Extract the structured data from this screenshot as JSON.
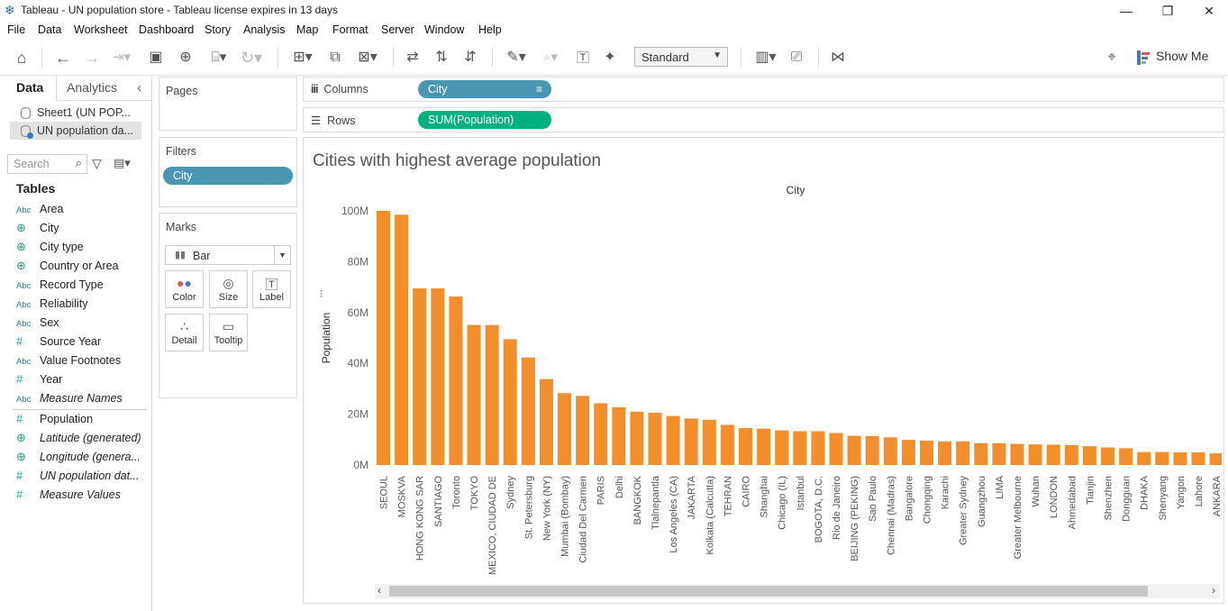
{
  "window": {
    "title": "Tableau - UN population store - Tableau license expires in 13 days",
    "controls": [
      "—",
      "❐",
      "✕"
    ]
  },
  "menu": [
    "File",
    "Data",
    "Worksheet",
    "Dashboard",
    "Story",
    "Analysis",
    "Map",
    "Format",
    "Server",
    "Window",
    "Help"
  ],
  "toolbar": {
    "fit_value": "Standard",
    "show_me_label": "Show Me"
  },
  "datapane": {
    "tabs": [
      "Data",
      "Analytics"
    ],
    "sources": [
      "Sheet1 (UN POP...",
      "UN population da..."
    ],
    "search_placeholder": "Search",
    "tables_heading": "Tables",
    "fields": [
      {
        "type": "Abc",
        "name": "Area",
        "italic": false
      },
      {
        "type": "globe",
        "name": "City",
        "italic": false
      },
      {
        "type": "globe",
        "name": "City type",
        "italic": false
      },
      {
        "type": "globe",
        "name": "Country or Area",
        "italic": false
      },
      {
        "type": "Abc",
        "name": "Record Type",
        "italic": false
      },
      {
        "type": "Abc",
        "name": "Reliability",
        "italic": false
      },
      {
        "type": "Abc",
        "name": "Sex",
        "italic": false
      },
      {
        "type": "#",
        "name": "Source Year",
        "italic": false
      },
      {
        "type": "Abc",
        "name": "Value Footnotes",
        "italic": false
      },
      {
        "type": "#",
        "name": "Year",
        "italic": false
      },
      {
        "type": "Abc",
        "name": "Measure Names",
        "italic": true
      }
    ],
    "measures": [
      {
        "type": "#",
        "name": "Population",
        "italic": false
      },
      {
        "type": "globe",
        "name": "Latitude (generated)",
        "italic": true
      },
      {
        "type": "globe",
        "name": "Longitude (genera...",
        "italic": true
      },
      {
        "type": "#",
        "name": "UN population dat...",
        "italic": true
      },
      {
        "type": "#",
        "name": "Measure Values",
        "italic": true
      }
    ]
  },
  "cards": {
    "pages_label": "Pages",
    "filters_label": "Filters",
    "filter_pill": "City",
    "marks_label": "Marks",
    "mark_type": "Bar",
    "mark_buttons": [
      "Color",
      "Size",
      "Label",
      "Detail",
      "Tooltip"
    ]
  },
  "shelves": {
    "columns_label": "Columns",
    "columns_pill": "City",
    "rows_label": "Rows",
    "rows_pill": "SUM(Population)"
  },
  "viz": {
    "title": "Cities with highest average population"
  },
  "colors": {
    "bar": "#f28e2b",
    "dimension_pill": "#4996b2",
    "measure_pill": "#00b180"
  },
  "chart_data": {
    "type": "bar",
    "title": "Cities with highest average population",
    "xlabel": "City",
    "ylabel": "Population",
    "ylim": [
      0,
      100000000
    ],
    "yticks": [
      "0M",
      "20M",
      "40M",
      "60M",
      "80M",
      "100M"
    ],
    "categories": [
      "SEOUL",
      "MOSKVA",
      "HONG KONG SAR",
      "SANTIAGO",
      "Toronto",
      "TOKYO",
      "MEXICO, CIUDAD DE",
      "Sydney",
      "St. Petersburg",
      "New York (NY)",
      "Mumbai (Bombay)",
      "Ciudad Del Carmen",
      "PARIS",
      "Delhi",
      "BANGKOK",
      "Tlalnepantla",
      "Los Angeles (CA)",
      "JAKARTA",
      "Kolkata (Calcutta)",
      "TEHRAN",
      "CAIRO",
      "Shanghai",
      "Chicago (IL)",
      "Istanbul",
      "BOGOTA, D.C.",
      "Rio de Janeiro",
      "BEIJING (PEKING)",
      "Sao Paulo",
      "Chennai (Madras)",
      "Bangalore",
      "Chongqing",
      "Karachi",
      "Greater Sydney",
      "Guangzhou",
      "LIMA",
      "Greater Melbourne",
      "Wuhan",
      "LONDON",
      "Ahmedabad",
      "Tianjin",
      "Shenzhen",
      "Dongguan",
      "DHAKA",
      "Shenyang",
      "Yangon",
      "Lahore",
      "ANKARA"
    ],
    "values": [
      100000000,
      98500000,
      69500000,
      69500000,
      66300000,
      55100000,
      55100000,
      49500000,
      42300000,
      33800000,
      28300000,
      27200000,
      24300000,
      22700000,
      21000000,
      20600000,
      19300000,
      18300000,
      17800000,
      15800000,
      14500000,
      14300000,
      13600000,
      13300000,
      13300000,
      12600000,
      11500000,
      11400000,
      10900000,
      9900000,
      9600000,
      9300000,
      9300000,
      8600000,
      8600000,
      8300000,
      8100000,
      8000000,
      7800000,
      7400000,
      6900000,
      6600000,
      5100000,
      5100000,
      5000000,
      5000000,
      4600000
    ]
  }
}
